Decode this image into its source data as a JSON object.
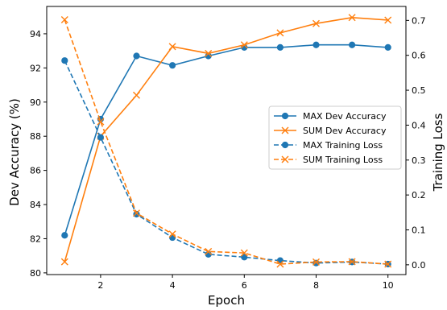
{
  "chart_data": {
    "type": "line",
    "xlabel": "Epoch",
    "ylabel_left": "Dev Accuracy (%)",
    "ylabel_right": "Training Loss",
    "x": [
      1,
      2,
      3,
      4,
      5,
      6,
      7,
      8,
      9,
      10
    ],
    "xlim": [
      0.5,
      10.5
    ],
    "ylim_left": [
      79.9,
      95.6
    ],
    "ylim_right": [
      -0.028,
      0.74
    ],
    "x_ticks": [
      2,
      4,
      6,
      8,
      10
    ],
    "y_ticks_left": [
      80,
      82,
      84,
      86,
      88,
      90,
      92,
      94
    ],
    "y_ticks_right": [
      0.0,
      0.1,
      0.2,
      0.3,
      0.4,
      0.5,
      0.6,
      0.7
    ],
    "grid": false,
    "legend_position": "center-right",
    "series": [
      {
        "name": "MAX Dev Accuracy",
        "axis": "left",
        "color": "#1f77b4",
        "marker": "circle",
        "linestyle": "solid",
        "values": [
          82.2,
          89.0,
          92.7,
          92.15,
          92.7,
          93.2,
          93.2,
          93.35,
          93.35,
          93.2
        ]
      },
      {
        "name": "SUM Dev Accuracy",
        "axis": "left",
        "color": "#ff7f0e",
        "marker": "x",
        "linestyle": "solid",
        "values": [
          80.65,
          88.0,
          90.4,
          93.25,
          92.85,
          93.35,
          94.05,
          94.6,
          94.95,
          94.8
        ]
      },
      {
        "name": "MAX Training Loss",
        "axis": "right",
        "color": "#1f77b4",
        "marker": "circle",
        "linestyle": "dashed",
        "values": [
          0.585,
          0.365,
          0.145,
          0.078,
          0.03,
          0.022,
          0.012,
          0.005,
          0.008,
          0.002
        ]
      },
      {
        "name": "SUM Training Loss",
        "axis": "right",
        "color": "#ff7f0e",
        "marker": "x",
        "linestyle": "dashed",
        "values": [
          0.702,
          0.41,
          0.148,
          0.088,
          0.038,
          0.034,
          0.002,
          0.008,
          0.009,
          0.002
        ]
      }
    ]
  }
}
